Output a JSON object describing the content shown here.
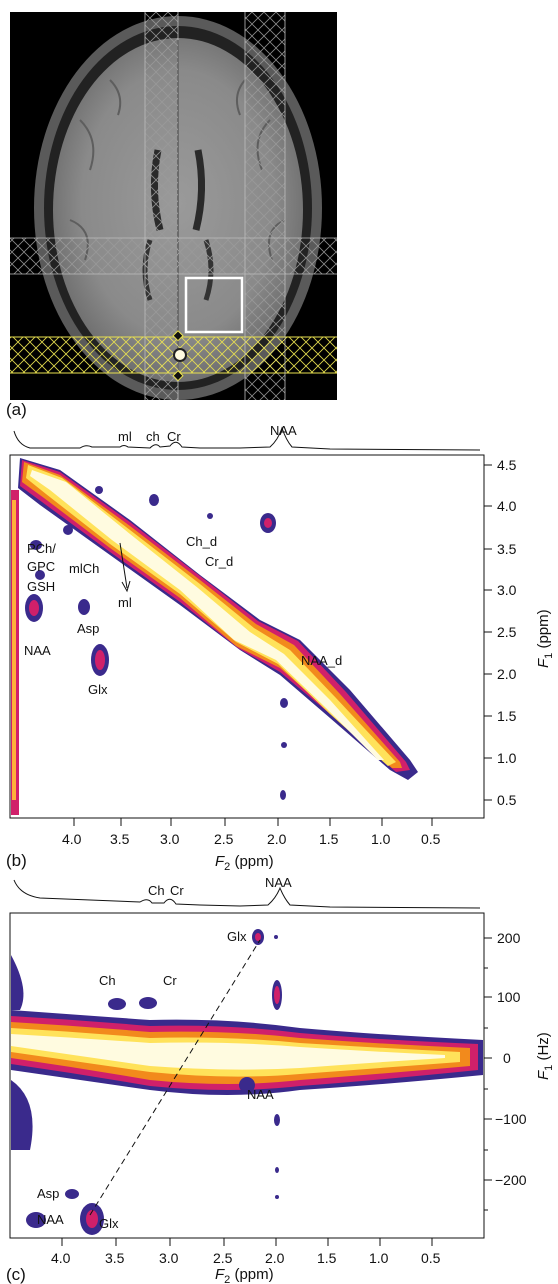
{
  "figure": {
    "panel_a": {
      "letter": "(a)"
    },
    "panel_b": {
      "letter": "(b)",
      "top_spectrum_labels": [
        "ml",
        "ch",
        "Cr",
        "NAA"
      ],
      "peak_labels": [
        "PCh/",
        "GPC",
        "GSH",
        "NAA",
        "mlCh",
        "Asp",
        "Glx",
        "ml",
        "Ch_d",
        "Cr_d",
        "NAA_d"
      ],
      "x_axis": {
        "label_main": "F",
        "label_sub": "2",
        "label_unit": " (ppm)",
        "ticks": [
          "4.0",
          "3.5",
          "3.0",
          "2.5",
          "2.0",
          "1.5",
          "1.0",
          "0.5"
        ]
      },
      "y_axis": {
        "label_main": "F",
        "label_sub": "1",
        "label_unit": " (ppm)",
        "ticks": [
          "4.5",
          "4.0",
          "3.5",
          "3.0",
          "2.5",
          "2.0",
          "1.5",
          "1.0",
          "0.5"
        ]
      }
    },
    "panel_c": {
      "letter": "(c)",
      "top_spectrum_labels": [
        "Ch",
        "Cr",
        "NAA"
      ],
      "peak_labels": [
        "Glx",
        "Ch",
        "Cr",
        "NAA",
        "Asp",
        "NAA",
        "Glx"
      ],
      "x_axis": {
        "label_main": "F",
        "label_sub": "2",
        "label_unit": " (ppm)",
        "ticks": [
          "4.0",
          "3.5",
          "3.0",
          "2.5",
          "2.0",
          "1.5",
          "1.0",
          "0.5"
        ]
      },
      "y_axis": {
        "label_main": "F",
        "label_sub": "1",
        "label_unit": " (Hz)",
        "ticks": [
          "200",
          "100",
          "0",
          "−100",
          "−200"
        ]
      }
    }
  },
  "colors": {
    "contour_dark": "#3a2a8c",
    "contour_mid": "#d0206a",
    "contour_warm": "#f28a1c",
    "contour_hot": "#ffe25a",
    "contour_core": "#fffbe0",
    "mri_bg": "#000000",
    "voi_box": "#ffffff",
    "sat_band": "#e8e050"
  }
}
